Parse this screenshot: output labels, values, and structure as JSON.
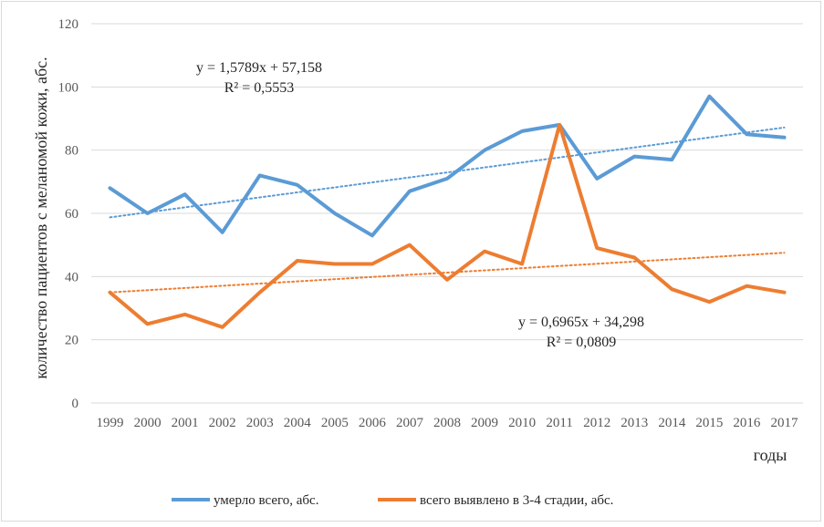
{
  "chart_data": {
    "type": "line",
    "title": "",
    "xlabel": "годы",
    "ylabel": "количество пациентов  с меланомой кожи, абс.",
    "ylim": [
      0,
      120
    ],
    "yticks": [
      "0",
      "20",
      "40",
      "60",
      "80",
      "100",
      "120"
    ],
    "categories": [
      "1999",
      "2000",
      "2001",
      "2002",
      "2003",
      "2004",
      "2005",
      "2006",
      "2007",
      "2008",
      "2009",
      "2010",
      "2011",
      "2012",
      "2013",
      "2014",
      "2015",
      "2016",
      "2017"
    ],
    "series": [
      {
        "name": "умерло всего, абс.",
        "color": "#5b9bd5",
        "values": [
          68,
          60,
          66,
          54,
          72,
          69,
          60,
          53,
          67,
          71,
          80,
          86,
          88,
          71,
          78,
          77,
          97,
          85,
          84
        ],
        "trendline": {
          "slope": 1.5789,
          "intercept": 57.158,
          "equation": "y = 1,5789x  + 57,158",
          "r2": "R² = 0,5553"
        }
      },
      {
        "name": "всего выявлено в 3-4 стадии, абс.",
        "color": "#ed7d31",
        "values": [
          35,
          25,
          28,
          24,
          35,
          45,
          44,
          44,
          50,
          39,
          48,
          44,
          88,
          49,
          46,
          36,
          32,
          37,
          35
        ],
        "trendline": {
          "slope": 0.6965,
          "intercept": 34.298,
          "equation": "y = 0,6965x  + 34,298",
          "r2": "R² = 0,0809"
        }
      }
    ],
    "grid": true,
    "legend_position": "bottom"
  }
}
